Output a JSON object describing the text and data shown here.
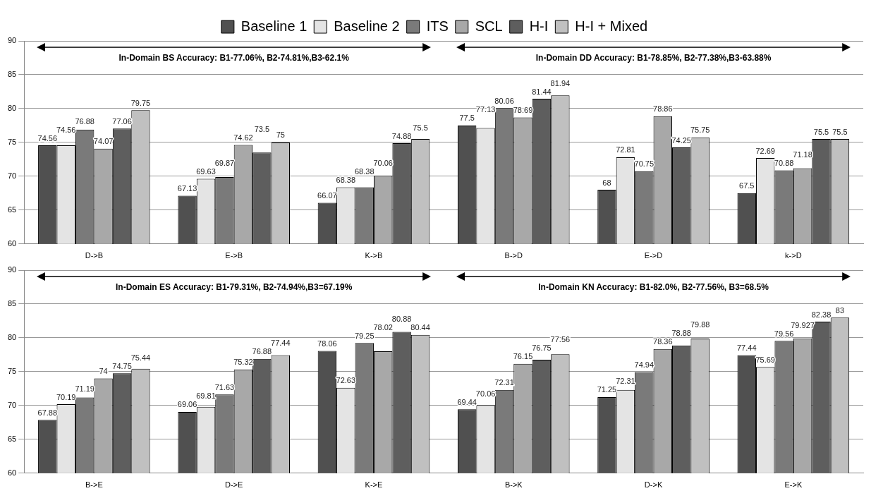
{
  "chart_data": [
    {
      "type": "bar",
      "categories": [
        "D->B",
        "E->B",
        "K->B",
        "B->D",
        "E->D",
        "k->D"
      ],
      "ylim": [
        60,
        90
      ],
      "yticks": [
        60,
        65,
        70,
        75,
        80,
        85,
        90
      ],
      "grid": "y",
      "legend": "top",
      "data_labels": true,
      "annotations": [
        "In-Domain BS Accuracy: B1-77.06%, B2-74.81%,B3-62.1%",
        "In-Domain DD Accuracy: B1-78.85%, B2-77.38%,B3-63.88%"
      ],
      "series": [
        {
          "name": "Baseline 1",
          "color": "#505050",
          "values": [
            74.56,
            67.13,
            66.07,
            77.5,
            68,
            67.5
          ]
        },
        {
          "name": "Baseline 2",
          "color": "#e4e4e4",
          "values": [
            74.56,
            69.63,
            68.38,
            77.13,
            72.81,
            72.69
          ]
        },
        {
          "name": "ITS",
          "color": "#7a7a7a",
          "values": [
            76.88,
            69.87,
            68.38,
            80.06,
            70.75,
            70.88
          ]
        },
        {
          "name": "SCL",
          "color": "#a8a8a8",
          "values": [
            74.07,
            74.62,
            70.06,
            78.69,
            78.86,
            71.18
          ]
        },
        {
          "name": "H-I",
          "color": "#5e5e5e",
          "values": [
            77.06,
            73.5,
            74.88,
            81.44,
            74.25,
            75.5
          ]
        },
        {
          "name": "H-I + Mixed",
          "color": "#c0c0c0",
          "values": [
            79.75,
            75,
            75.5,
            81.94,
            75.75,
            75.5
          ]
        }
      ]
    },
    {
      "type": "bar",
      "categories": [
        "B->E",
        "D->E",
        "K->E",
        "B->K",
        "D->K",
        "E->K"
      ],
      "ylim": [
        60,
        90
      ],
      "yticks": [
        60,
        65,
        70,
        75,
        80,
        85,
        90
      ],
      "grid": "y",
      "data_labels": true,
      "annotations": [
        "In-Domain ES Accuracy: B1-79.31%, B2-74.94%,B3=67.19%",
        "In-Domain KN Accuracy: B1-82.0%, B2-77.56%, B3=68.5%"
      ],
      "series": [
        {
          "color": "#505050",
          "values": [
            67.88,
            69.06,
            78.06,
            69.44,
            71.25,
            77.44
          ]
        },
        {
          "color": "#e4e4e4",
          "values": [
            70.19,
            69.81,
            72.63,
            70.06,
            72.31,
            75.69
          ]
        },
        {
          "color": "#7a7a7a",
          "values": [
            71.19,
            71.63,
            79.25,
            72.31,
            74.94,
            79.56
          ]
        },
        {
          "color": "#a8a8a8",
          "values": [
            74,
            75.32,
            78.02,
            76.15,
            78.36,
            79.927
          ]
        },
        {
          "color": "#5e5e5e",
          "values": [
            74.75,
            76.88,
            80.88,
            76.75,
            78.88,
            82.38
          ]
        },
        {
          "color": "#c0c0c0",
          "values": [
            75.44,
            77.44,
            80.44,
            77.56,
            79.88,
            83
          ]
        }
      ]
    }
  ]
}
